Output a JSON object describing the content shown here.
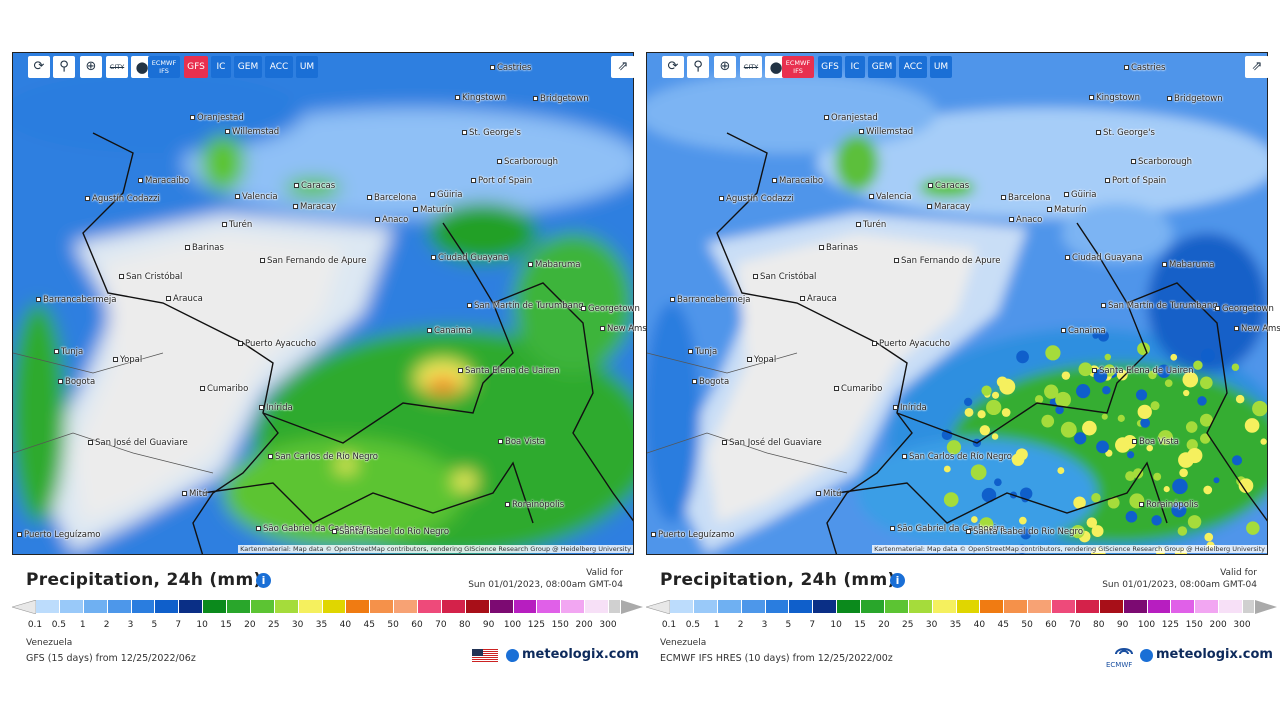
{
  "scale": {
    "labels": [
      "0.1",
      "0.5",
      "1",
      "2",
      "3",
      "5",
      "7",
      "10",
      "15",
      "20",
      "25",
      "30",
      "35",
      "40",
      "45",
      "50",
      "60",
      "70",
      "80",
      "90",
      "100",
      "125",
      "150",
      "200",
      "300"
    ],
    "colors": [
      "#bcdcfc",
      "#99c9f9",
      "#6fb0f2",
      "#4d97ea",
      "#2a7ddf",
      "#0f5fcb",
      "#0a2f86",
      "#0b8a1c",
      "#29a62b",
      "#5cc433",
      "#a5dc3b",
      "#f5f05e",
      "#e0d600",
      "#f07b12",
      "#f5914a",
      "#f7a274",
      "#ee4a7a",
      "#d4224a",
      "#a80f18",
      "#7c0a72",
      "#b71ec0",
      "#e060e8",
      "#f2a6f2",
      "#f7e0f7",
      "#d0d0d0"
    ]
  },
  "cities": [
    "Castries",
    "Kingstown",
    "Bridgetown",
    "Oranjestad",
    "Willemstad",
    "St. George's",
    "Scarborough",
    "Port of Spain",
    "Maracaibo",
    "Caracas",
    "Barcelona",
    "Güiria",
    "Valencia",
    "Maracay",
    "Maturín",
    "Anaco",
    "Agustín Codazzi",
    "Barinas",
    "Turén",
    "San Fernando de Apure",
    "Ciudad Guayana",
    "Mabaruma",
    "San Cristóbal",
    "Barrancabermeja",
    "Arauca",
    "San Martín de Turumbang",
    "Georgetown",
    "New Amsterdam",
    "Canaima",
    "Tunja",
    "Yopal",
    "Puerto Ayacucho",
    "Santa Elena de Uairen",
    "Bogota",
    "Cumaribo",
    "Inírida",
    "Boa Vista",
    "San José del Guaviare",
    "San Carlos de Río Negro",
    "Mitú",
    "Rorainópolis",
    "São Gabriel da Cachoeira",
    "Santa Isabel do Rio Negro",
    "Puerto Leguízamo"
  ],
  "attribution": "Kartenmaterial: Map data © OpenStreetMap contributors, rendering GIScience Research Group @ Heidelberg University",
  "title": "Precipitation, 24h (mm)",
  "valid_label": "Valid for",
  "valid_time": "Sun 01/01/2023, 08:00am GMT-04",
  "region": "Venezuela",
  "brand": "meteologix.com",
  "panels": [
    {
      "toolbar": [
        "CITY",
        "ECMWF IFS",
        "GFS",
        "IC",
        "GEM",
        "ACC",
        "UM"
      ],
      "active": 2,
      "model_run": "GFS (15 days) from 12/25/2022/06z",
      "style": "gfs"
    },
    {
      "toolbar": [
        "CITY",
        "ECMWF IFS",
        "GFS",
        "IC",
        "GEM",
        "ACC",
        "UM"
      ],
      "active": 1,
      "model_run": "ECMWF IFS HRES (10 days) from 12/25/2022/00z",
      "style": "ecmwf",
      "logo_text": "ECMWF"
    }
  ]
}
